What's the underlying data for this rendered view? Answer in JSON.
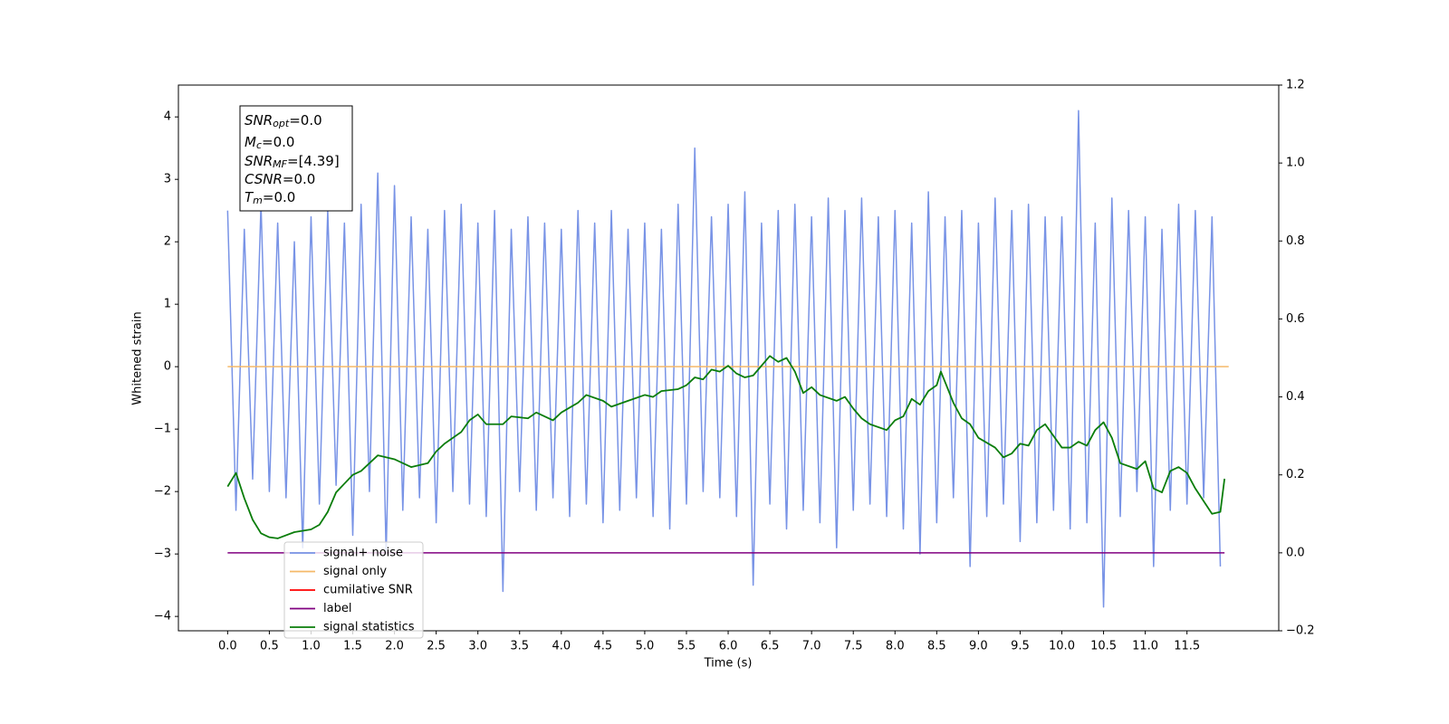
{
  "chart_data": {
    "type": "line",
    "xlabel": "Time (s)",
    "ylabel": "Whitened strain",
    "xlim": [
      -0.59,
      12.6
    ],
    "ylim": [
      -4.23,
      4.51
    ],
    "y2lim": [
      -0.2,
      1.2
    ],
    "xticks": [
      {
        "value": 0,
        "label": "0.0"
      },
      0.5,
      {
        "value": 1,
        "label": "1.0"
      },
      1.5,
      {
        "value": 2,
        "label": "2.0"
      },
      2.5,
      {
        "value": 3,
        "label": "3.0"
      },
      3.5,
      {
        "value": 4,
        "label": "4.0"
      },
      4.5,
      {
        "value": 5,
        "label": "5.0"
      },
      5.5,
      {
        "value": 6,
        "label": "6.0"
      },
      6.5,
      {
        "value": 7,
        "label": "7.0"
      },
      7.5,
      {
        "value": 8,
        "label": "8.0"
      },
      8.5,
      {
        "value": 9,
        "label": "9.0"
      },
      9.5,
      {
        "value": 10,
        "label": "10.0"
      },
      10.5,
      {
        "value": 11,
        "label": "11.0"
      },
      11.5
    ],
    "yticks": [
      {
        "value": -4,
        "label": "−4"
      },
      {
        "value": -3,
        "label": "−3"
      },
      {
        "value": -2,
        "label": "−2"
      },
      {
        "value": -1,
        "label": "−1"
      },
      0,
      1,
      2,
      3,
      4
    ],
    "y2ticks": [
      {
        "value": -0.2,
        "label": "−0.2"
      },
      {
        "value": 0,
        "label": "0.0"
      },
      0.2,
      0.4,
      0.6,
      0.8,
      {
        "value": 1,
        "label": "1.0"
      },
      1.2
    ],
    "annotation": [
      {
        "name": "SNR",
        "sub": "opt",
        "text": "=0.0"
      },
      {
        "name": "M",
        "sub": "c",
        "text": "=0.0"
      },
      {
        "name": "SNR",
        "sub": "MF",
        "text": "=[4.39]"
      },
      {
        "name": "CSNR",
        "text": "=0.0"
      },
      {
        "name": "T",
        "sub": "m",
        "text": "=0.0"
      }
    ],
    "legend": "lower left",
    "series": [
      {
        "name": "signal+ noise",
        "color": "#7893e6",
        "x": [
          0.0,
          0.1,
          0.2,
          0.3,
          0.4,
          0.5,
          0.6,
          0.7,
          0.8,
          0.9,
          1.0,
          1.1,
          1.2,
          1.3,
          1.4,
          1.5,
          1.6,
          1.7,
          1.8,
          1.9,
          2.0,
          2.1,
          2.2,
          2.3,
          2.4,
          2.5,
          2.6,
          2.7,
          2.8,
          2.9,
          3.0,
          3.1,
          3.2,
          3.3,
          3.4,
          3.5,
          3.6,
          3.7,
          3.8,
          3.9,
          4.0,
          4.1,
          4.2,
          4.3,
          4.4,
          4.5,
          4.6,
          4.7,
          4.8,
          4.9,
          5.0,
          5.1,
          5.2,
          5.3,
          5.4,
          5.5,
          5.6,
          5.7,
          5.8,
          5.9,
          6.0,
          6.1,
          6.2,
          6.3,
          6.4,
          6.5,
          6.6,
          6.7,
          6.8,
          6.9,
          7.0,
          7.1,
          7.2,
          7.3,
          7.4,
          7.5,
          7.6,
          7.7,
          7.8,
          7.9,
          8.0,
          8.1,
          8.2,
          8.3,
          8.4,
          8.5,
          8.6,
          8.7,
          8.8,
          8.9,
          9.0,
          9.1,
          9.2,
          9.3,
          9.4,
          9.5,
          9.6,
          9.7,
          9.8,
          9.9,
          10.0,
          10.1,
          10.2,
          10.3,
          10.4,
          10.5,
          10.6,
          10.7,
          10.8,
          10.9,
          11.0,
          11.1,
          11.2,
          11.3,
          11.4,
          11.5,
          11.6,
          11.7,
          11.8,
          11.9
        ],
        "values": [
          2.5,
          -2.3,
          2.2,
          -1.8,
          2.6,
          -2.0,
          2.3,
          -2.1,
          2.0,
          -2.9,
          2.4,
          -2.2,
          2.5,
          -1.9,
          2.3,
          -2.7,
          2.6,
          -2.0,
          3.1,
          -3.0,
          2.9,
          -2.3,
          2.4,
          -2.1,
          2.2,
          -2.5,
          2.5,
          -2.0,
          2.6,
          -2.2,
          2.3,
          -2.4,
          2.5,
          -3.6,
          2.2,
          -2.0,
          2.4,
          -2.3,
          2.3,
          -2.1,
          2.2,
          -2.4,
          2.5,
          -2.2,
          2.3,
          -2.5,
          2.5,
          -2.3,
          2.2,
          -2.1,
          2.3,
          -2.4,
          2.2,
          -2.6,
          2.6,
          -2.2,
          3.5,
          -2.0,
          2.4,
          -2.1,
          2.6,
          -2.4,
          2.8,
          -3.5,
          2.3,
          -2.2,
          2.5,
          -2.6,
          2.6,
          -2.3,
          2.4,
          -2.5,
          2.7,
          -2.9,
          2.5,
          -2.3,
          2.7,
          -2.2,
          2.4,
          -2.4,
          2.5,
          -2.6,
          2.3,
          -3.0,
          2.8,
          -2.5,
          2.4,
          -2.1,
          2.5,
          -3.2,
          2.3,
          -2.4,
          2.7,
          -2.2,
          2.5,
          -2.8,
          2.6,
          -2.5,
          2.4,
          -2.3,
          2.4,
          -2.6,
          4.1,
          -2.5,
          2.3,
          -3.85,
          2.7,
          -2.4,
          2.5,
          -2.0,
          2.4,
          -3.2,
          2.2,
          -2.3,
          2.6,
          -2.2,
          2.5,
          -2.1,
          2.4,
          -3.2
        ]
      },
      {
        "name": "signal only",
        "color": "#f5b969",
        "x": [
          0.0,
          12.0
        ],
        "values": [
          0,
          0
        ]
      },
      {
        "name": "cumilative SNR",
        "color": "#ff0000"
      },
      {
        "name": "label",
        "color": "#800080",
        "axis": "y2",
        "x": [
          0.0,
          11.95
        ],
        "values": [
          0,
          0
        ]
      },
      {
        "name": "signal statistics",
        "color": "#0a7d0a",
        "axis": "y2",
        "x": [
          0.0,
          0.1,
          0.2,
          0.3,
          0.4,
          0.5,
          0.6,
          0.8,
          1.0,
          1.1,
          1.2,
          1.3,
          1.5,
          1.6,
          1.8,
          2.0,
          2.2,
          2.4,
          2.5,
          2.6,
          2.8,
          2.9,
          3.0,
          3.1,
          3.3,
          3.4,
          3.6,
          3.7,
          3.9,
          4.0,
          4.2,
          4.3,
          4.5,
          4.6,
          4.8,
          5.0,
          5.1,
          5.2,
          5.4,
          5.5,
          5.6,
          5.7,
          5.8,
          5.9,
          6.0,
          6.1,
          6.2,
          6.3,
          6.5,
          6.6,
          6.7,
          6.8,
          6.9,
          7.0,
          7.1,
          7.3,
          7.4,
          7.5,
          7.6,
          7.7,
          7.9,
          8.0,
          8.1,
          8.2,
          8.3,
          8.4,
          8.5,
          8.55,
          8.7,
          8.8,
          8.9,
          9.0,
          9.2,
          9.3,
          9.4,
          9.5,
          9.6,
          9.7,
          9.8,
          10.0,
          10.1,
          10.2,
          10.3,
          10.4,
          10.5,
          10.6,
          10.7,
          10.9,
          11.0,
          11.1,
          11.2,
          11.3,
          11.4,
          11.5,
          11.6,
          11.8,
          11.9,
          11.95
        ],
        "values": [
          0.17,
          0.205,
          0.14,
          0.085,
          0.05,
          0.04,
          0.037,
          0.053,
          0.06,
          0.072,
          0.105,
          0.155,
          0.2,
          0.21,
          0.25,
          0.24,
          0.22,
          0.23,
          0.26,
          0.28,
          0.31,
          0.34,
          0.355,
          0.33,
          0.33,
          0.35,
          0.345,
          0.36,
          0.34,
          0.36,
          0.385,
          0.405,
          0.39,
          0.375,
          0.39,
          0.405,
          0.4,
          0.415,
          0.42,
          0.43,
          0.45,
          0.445,
          0.47,
          0.465,
          0.48,
          0.46,
          0.45,
          0.455,
          0.505,
          0.49,
          0.5,
          0.465,
          0.41,
          0.425,
          0.405,
          0.39,
          0.4,
          0.37,
          0.345,
          0.33,
          0.315,
          0.34,
          0.35,
          0.395,
          0.38,
          0.415,
          0.43,
          0.465,
          0.385,
          0.345,
          0.33,
          0.295,
          0.27,
          0.245,
          0.255,
          0.28,
          0.275,
          0.315,
          0.33,
          0.27,
          0.27,
          0.285,
          0.275,
          0.315,
          0.335,
          0.295,
          0.23,
          0.215,
          0.235,
          0.165,
          0.155,
          0.21,
          0.22,
          0.205,
          0.165,
          0.1,
          0.105,
          0.19
        ]
      }
    ]
  }
}
